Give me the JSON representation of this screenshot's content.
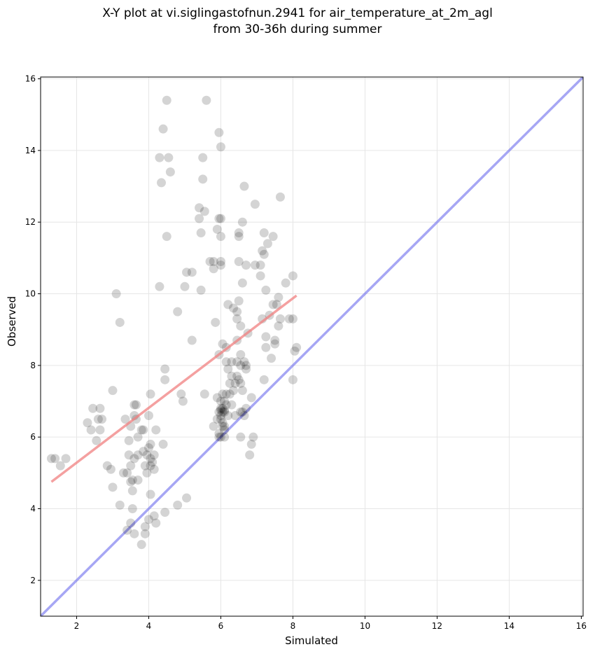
{
  "chart_data": {
    "type": "scatter",
    "title_line1": "X-Y plot at vi.siglingastofnun.2941 for air_temperature_at_2m_agl",
    "title_line2": "from 30-36h during summer",
    "xlabel": "Simulated",
    "ylabel": "Observed",
    "xlim": [
      1.0,
      16.05
    ],
    "ylim": [
      1.0,
      16.05
    ],
    "xticks": [
      2,
      4,
      6,
      8,
      10,
      12,
      14,
      16
    ],
    "yticks": [
      2,
      4,
      6,
      8,
      10,
      12,
      14,
      16
    ],
    "grid": true,
    "points": [
      [
        1.3,
        5.4
      ],
      [
        1.4,
        5.4
      ],
      [
        1.55,
        5.2
      ],
      [
        1.7,
        5.4
      ],
      [
        2.3,
        6.4
      ],
      [
        2.4,
        6.2
      ],
      [
        2.45,
        6.8
      ],
      [
        2.55,
        5.9
      ],
      [
        2.6,
        6.5
      ],
      [
        2.65,
        6.2
      ],
      [
        2.65,
        6.8
      ],
      [
        2.7,
        6.5
      ],
      [
        2.85,
        5.2
      ],
      [
        2.95,
        5.1
      ],
      [
        3.0,
        7.3
      ],
      [
        3.0,
        4.6
      ],
      [
        3.1,
        10.0
      ],
      [
        3.2,
        9.2
      ],
      [
        3.2,
        4.1
      ],
      [
        3.3,
        5.0
      ],
      [
        3.35,
        6.5
      ],
      [
        3.4,
        5.0
      ],
      [
        3.4,
        3.4
      ],
      [
        3.45,
        5.5
      ],
      [
        3.45,
        5.9
      ],
      [
        3.5,
        3.6
      ],
      [
        3.5,
        6.3
      ],
      [
        3.5,
        4.75
      ],
      [
        3.5,
        5.2
      ],
      [
        3.55,
        4.8
      ],
      [
        3.55,
        4.0
      ],
      [
        3.55,
        4.5
      ],
      [
        3.6,
        5.4
      ],
      [
        3.6,
        3.3
      ],
      [
        3.6,
        6.6
      ],
      [
        3.6,
        6.9
      ],
      [
        3.65,
        6.9
      ],
      [
        3.65,
        6.5
      ],
      [
        3.7,
        6.0
      ],
      [
        3.7,
        4.8
      ],
      [
        3.7,
        5.5
      ],
      [
        3.8,
        6.2
      ],
      [
        3.85,
        6.2
      ],
      [
        3.8,
        3.0
      ],
      [
        3.85,
        5.6
      ],
      [
        3.9,
        5.2
      ],
      [
        3.9,
        3.3
      ],
      [
        3.9,
        3.5
      ],
      [
        3.95,
        5.0
      ],
      [
        3.95,
        5.5
      ],
      [
        4.0,
        6.6
      ],
      [
        4.0,
        5.7
      ],
      [
        4.0,
        3.7
      ],
      [
        4.05,
        5.8
      ],
      [
        4.05,
        5.4
      ],
      [
        4.05,
        5.2
      ],
      [
        4.05,
        4.4
      ],
      [
        4.05,
        7.2
      ],
      [
        4.1,
        5.3
      ],
      [
        4.15,
        5.1
      ],
      [
        4.15,
        5.5
      ],
      [
        4.15,
        3.8
      ],
      [
        4.2,
        3.6
      ],
      [
        4.2,
        6.2
      ],
      [
        4.3,
        13.8
      ],
      [
        4.3,
        10.2
      ],
      [
        4.35,
        13.1
      ],
      [
        4.4,
        5.8
      ],
      [
        4.4,
        14.6
      ],
      [
        4.45,
        3.9
      ],
      [
        4.45,
        7.6
      ],
      [
        4.45,
        7.9
      ],
      [
        4.5,
        15.4
      ],
      [
        4.5,
        11.6
      ],
      [
        4.55,
        13.8
      ],
      [
        4.6,
        13.4
      ],
      [
        4.8,
        9.5
      ],
      [
        4.8,
        4.1
      ],
      [
        4.9,
        7.2
      ],
      [
        4.95,
        7.0
      ],
      [
        5.0,
        10.2
      ],
      [
        5.05,
        10.6
      ],
      [
        5.05,
        4.3
      ],
      [
        5.2,
        8.7
      ],
      [
        5.2,
        10.6
      ],
      [
        5.4,
        12.1
      ],
      [
        5.4,
        12.4
      ],
      [
        5.45,
        11.7
      ],
      [
        5.45,
        10.1
      ],
      [
        5.5,
        13.2
      ],
      [
        5.5,
        13.8
      ],
      [
        5.55,
        12.3
      ],
      [
        5.55,
        7.2
      ],
      [
        5.6,
        15.4
      ],
      [
        5.7,
        10.9
      ],
      [
        5.8,
        6.3
      ],
      [
        5.8,
        10.9
      ],
      [
        5.8,
        10.7
      ],
      [
        5.85,
        9.2
      ],
      [
        5.9,
        11.8
      ],
      [
        5.9,
        7.1
      ],
      [
        5.9,
        6.5
      ],
      [
        5.95,
        6.0
      ],
      [
        5.95,
        6.1
      ],
      [
        5.95,
        6.7
      ],
      [
        5.95,
        8.3
      ],
      [
        5.95,
        12.1
      ],
      [
        5.95,
        14.5
      ],
      [
        6.0,
        14.1
      ],
      [
        6.0,
        12.1
      ],
      [
        6.0,
        11.6
      ],
      [
        6.0,
        10.9
      ],
      [
        6.0,
        10.8
      ],
      [
        6.0,
        7.0
      ],
      [
        6.0,
        6.8
      ],
      [
        6.0,
        6.75
      ],
      [
        6.0,
        6.6
      ],
      [
        6.0,
        6.5
      ],
      [
        6.0,
        6.0
      ],
      [
        6.05,
        7.2
      ],
      [
        6.05,
        6.3
      ],
      [
        6.05,
        6.4
      ],
      [
        6.05,
        8.6
      ],
      [
        6.05,
        6.7
      ],
      [
        6.05,
        6.8
      ],
      [
        6.1,
        6.75
      ],
      [
        6.1,
        6.7
      ],
      [
        6.1,
        6.2
      ],
      [
        6.1,
        6.0
      ],
      [
        6.1,
        6.3
      ],
      [
        6.1,
        7.0
      ],
      [
        6.15,
        8.1
      ],
      [
        6.15,
        8.5
      ],
      [
        6.15,
        7.2
      ],
      [
        6.15,
        6.9
      ],
      [
        6.2,
        7.9
      ],
      [
        6.2,
        6.6
      ],
      [
        6.2,
        9.7
      ],
      [
        6.25,
        7.5
      ],
      [
        6.25,
        7.2
      ],
      [
        6.3,
        8.1
      ],
      [
        6.3,
        6.9
      ],
      [
        6.3,
        7.7
      ],
      [
        6.35,
        7.3
      ],
      [
        6.35,
        9.6
      ],
      [
        6.4,
        7.5
      ],
      [
        6.4,
        6.6
      ],
      [
        6.45,
        9.3
      ],
      [
        6.45,
        9.5
      ],
      [
        6.45,
        8.1
      ],
      [
        6.45,
        8.7
      ],
      [
        6.45,
        7.7
      ],
      [
        6.5,
        9.8
      ],
      [
        6.5,
        7.6
      ],
      [
        6.5,
        10.9
      ],
      [
        6.5,
        11.7
      ],
      [
        6.5,
        11.6
      ],
      [
        6.55,
        6.0
      ],
      [
        6.55,
        9.1
      ],
      [
        6.55,
        8.3
      ],
      [
        6.55,
        7.5
      ],
      [
        6.55,
        8.0
      ],
      [
        6.55,
        6.7
      ],
      [
        6.6,
        12.0
      ],
      [
        6.6,
        10.3
      ],
      [
        6.6,
        6.7
      ],
      [
        6.6,
        7.3
      ],
      [
        6.65,
        8.1
      ],
      [
        6.65,
        6.6
      ],
      [
        6.65,
        13.0
      ],
      [
        6.7,
        7.9
      ],
      [
        6.7,
        10.8
      ],
      [
        6.7,
        6.8
      ],
      [
        6.7,
        8.0
      ],
      [
        6.75,
        8.9
      ],
      [
        6.8,
        5.5
      ],
      [
        6.85,
        5.8
      ],
      [
        6.85,
        7.1
      ],
      [
        6.9,
        6.0
      ],
      [
        6.95,
        10.8
      ],
      [
        6.95,
        12.5
      ],
      [
        7.1,
        10.8
      ],
      [
        7.1,
        10.5
      ],
      [
        7.15,
        11.2
      ],
      [
        7.15,
        9.3
      ],
      [
        7.2,
        11.7
      ],
      [
        7.2,
        11.1
      ],
      [
        7.2,
        7.6
      ],
      [
        7.25,
        8.8
      ],
      [
        7.25,
        8.5
      ],
      [
        7.25,
        10.1
      ],
      [
        7.3,
        11.4
      ],
      [
        7.35,
        9.4
      ],
      [
        7.4,
        8.2
      ],
      [
        7.45,
        9.7
      ],
      [
        7.45,
        11.6
      ],
      [
        7.5,
        8.6
      ],
      [
        7.5,
        8.7
      ],
      [
        7.55,
        9.7
      ],
      [
        7.6,
        9.9
      ],
      [
        7.6,
        9.1
      ],
      [
        7.65,
        12.7
      ],
      [
        7.65,
        9.3
      ],
      [
        7.8,
        10.3
      ],
      [
        7.9,
        9.3
      ],
      [
        8.0,
        9.3
      ],
      [
        8.0,
        7.6
      ],
      [
        8.0,
        10.5
      ],
      [
        8.05,
        8.4
      ],
      [
        8.1,
        8.5
      ]
    ],
    "regression_line": {
      "x": [
        1.3,
        8.1
      ],
      "y": [
        4.75,
        9.95
      ]
    },
    "identity_line": {
      "x": [
        1.0,
        16.05
      ],
      "y": [
        1.0,
        16.05
      ]
    },
    "colors": {
      "points": "#000000",
      "regression": "#f08080",
      "identity": "#7777ee"
    }
  }
}
